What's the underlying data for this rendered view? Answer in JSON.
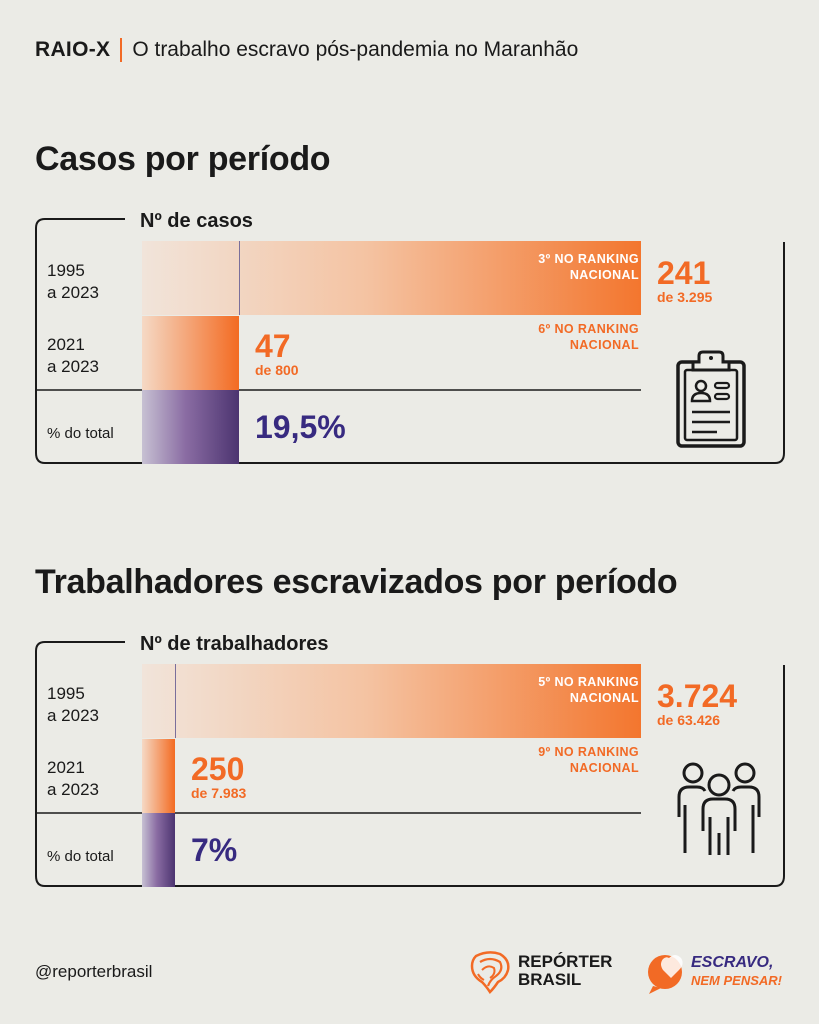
{
  "header": {
    "kicker": "RAIO-X",
    "subtitle": "O trabalho escravo pós-pandemia no Maranhão"
  },
  "chart_data": [
    {
      "type": "bar",
      "title": "Casos por período",
      "column_label": "Nº de casos",
      "rows": [
        {
          "label_line1": "1995",
          "label_line2": "a 2023",
          "value": 241,
          "value_text": "241",
          "of_text": "de 3.295",
          "rank_line1": "3º NO RANKING",
          "rank_line2": "NACIONAL"
        },
        {
          "label_line1": "2021",
          "label_line2": "a 2023",
          "value": 47,
          "value_text": "47",
          "of_text": "de 800",
          "rank_line1": "6º NO RANKING",
          "rank_line2": "NACIONAL"
        }
      ],
      "share": {
        "label": "% do total",
        "value": 19.5,
        "value_text": "19,5%"
      },
      "icon": "clipboard-id-icon",
      "colors": {
        "accent": "#f26a25",
        "share": "#4c3470",
        "share_text": "#372a80"
      }
    },
    {
      "type": "bar",
      "title": "Trabalhadores escravizados por período",
      "column_label": "Nº de trabalhadores",
      "rows": [
        {
          "label_line1": "1995",
          "label_line2": "a 2023",
          "value": 3724,
          "value_text": "3.724",
          "of_text": "de 63.426",
          "rank_line1": "5º NO RANKING",
          "rank_line2": "NACIONAL"
        },
        {
          "label_line1": "2021",
          "label_line2": "a 2023",
          "value": 250,
          "value_text": "250",
          "of_text": "de 7.983",
          "rank_line1": "9º NO RANKING",
          "rank_line2": "NACIONAL"
        }
      ],
      "share": {
        "label": "% do total",
        "value": 7,
        "value_text": "7%"
      },
      "icon": "people-group-icon",
      "colors": {
        "accent": "#f26a25",
        "share": "#4c3470",
        "share_text": "#372a80"
      }
    }
  ],
  "footer": {
    "handle": "@reporterbrasil",
    "logo_rb_line1": "REPÓRTER",
    "logo_rb_line2": "BRASIL",
    "logo_enp_line1": "ESCRAVO,",
    "logo_enp_line2": "NEM PENSAR!",
    "logo_rb_icon": "brazil-fingerprint-icon",
    "logo_enp_icon": "speech-heart-icon"
  }
}
